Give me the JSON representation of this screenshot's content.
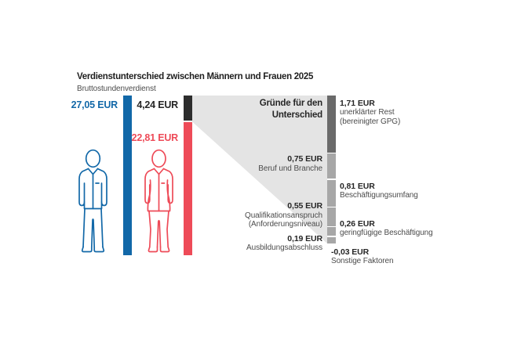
{
  "title": "Verdienstunterschied zwischen Männern und Frauen 2025",
  "subtitle": "Bruttostundenverdienst",
  "men": {
    "label": "27,05 EUR",
    "value": 27.05
  },
  "women": {
    "label": "22,81 EUR",
    "value": 22.81
  },
  "gap": {
    "label": "4,24 EUR",
    "value": 4.24
  },
  "heading": {
    "line1": "Gründe für den",
    "line2": "Unterschied"
  },
  "colors": {
    "men_blue": "#1268a8",
    "women_red": "#ee4b58",
    "gap_black": "#2d2d2d",
    "funnel_gray": "#e4e4e4",
    "segment_gray": "#a7a7a7",
    "segment_dark_gray": "#6a6a6a",
    "value_text": "#262626",
    "desc_text": "#4c4c4c"
  },
  "segments": [
    {
      "value_label": "1,71 EUR",
      "value": 1.71,
      "desc_lines": [
        "unerklärter Rest",
        "(bereinigter GPG)"
      ]
    },
    {
      "value_label": "0,75 EUR",
      "value": 0.75,
      "desc_lines": [
        "Beruf und Branche"
      ]
    },
    {
      "value_label": "0,81 EUR",
      "value": 0.81,
      "desc_lines": [
        "Beschäftigungsumfang"
      ]
    },
    {
      "value_label": "0,55 EUR",
      "value": 0.55,
      "desc_lines": [
        "Qualifikationsanspruch",
        "(Anforderungsniveau)"
      ]
    },
    {
      "value_label": "0,26 EUR",
      "value": 0.26,
      "desc_lines": [
        "geringfügige Beschäftigung"
      ]
    },
    {
      "value_label": "0,19 EUR",
      "value": 0.19,
      "desc_lines": [
        "Ausbildungsabschluss"
      ]
    },
    {
      "value_label": "-0,03 EUR",
      "value": -0.03,
      "desc_lines": [
        "Sonstige Faktoren"
      ]
    }
  ],
  "chart_data": {
    "type": "bar",
    "title": "Verdienstunterschied zwischen Männern und Frauen 2025",
    "subtitle": "Bruttostundenverdienst",
    "unit": "EUR",
    "categories": [
      "Männer",
      "Frauen"
    ],
    "values": [
      27.05,
      22.81
    ],
    "difference": 4.24,
    "breakdown_title": "Gründe für den Unterschied",
    "breakdown": [
      {
        "label": "unerklärter Rest (bereinigter GPG)",
        "value": 1.71
      },
      {
        "label": "Beruf und Branche",
        "value": 0.75
      },
      {
        "label": "Beschäftigungsumfang",
        "value": 0.81
      },
      {
        "label": "Qualifikationsanspruch (Anforderungsniveau)",
        "value": 0.55
      },
      {
        "label": "geringfügige Beschäftigung",
        "value": 0.26
      },
      {
        "label": "Ausbildungsabschluss",
        "value": 0.19
      },
      {
        "label": "Sonstige Faktoren",
        "value": -0.03
      }
    ],
    "legend_position": "none",
    "grid": false
  }
}
